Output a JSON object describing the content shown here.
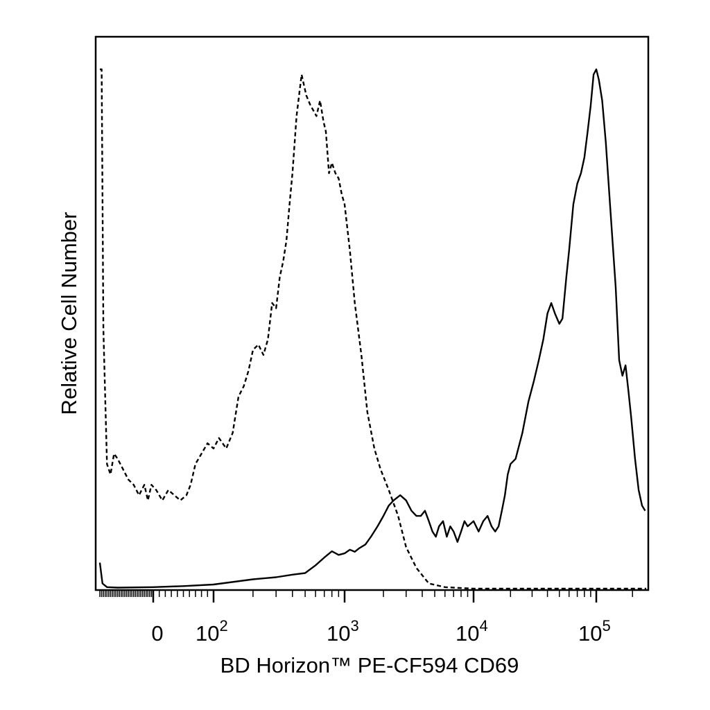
{
  "chart_data": {
    "type": "line",
    "xlabel": "BD Horizon™ PE-CF594 CD69",
    "ylabel": "Relative Cell Number",
    "x_scale": "biexponential",
    "xlim": [
      -300,
      260000
    ],
    "ylim": [
      0,
      100
    ],
    "x_tick_labels": [
      {
        "value": 0,
        "base": "0",
        "exp": ""
      },
      {
        "value": 100,
        "base": "10",
        "exp": "2"
      },
      {
        "value": 1000,
        "base": "10",
        "exp": "3"
      },
      {
        "value": 10000,
        "base": "10",
        "exp": "4"
      },
      {
        "value": 100000,
        "base": "10",
        "exp": "5"
      }
    ],
    "grid": false,
    "legend": "none",
    "series": [
      {
        "style": "dashed",
        "color": "#000000",
        "points": [
          [
            -300,
            100
          ],
          [
            -290,
            100
          ],
          [
            -280,
            50
          ],
          [
            -260,
            24
          ],
          [
            -240,
            22
          ],
          [
            -220,
            26
          ],
          [
            -200,
            25
          ],
          [
            -170,
            23
          ],
          [
            -140,
            21
          ],
          [
            -110,
            20
          ],
          [
            -80,
            18
          ],
          [
            -50,
            20
          ],
          [
            -30,
            17
          ],
          [
            -10,
            20
          ],
          [
            5,
            19
          ],
          [
            15,
            17
          ],
          [
            25,
            19
          ],
          [
            35,
            18
          ],
          [
            45,
            17
          ],
          [
            55,
            18
          ],
          [
            62,
            20
          ],
          [
            70,
            24
          ],
          [
            80,
            26
          ],
          [
            90,
            28
          ],
          [
            100,
            27
          ],
          [
            110,
            29
          ],
          [
            125,
            27
          ],
          [
            140,
            30
          ],
          [
            155,
            37
          ],
          [
            170,
            39
          ],
          [
            185,
            42
          ],
          [
            200,
            46
          ],
          [
            220,
            47
          ],
          [
            240,
            45
          ],
          [
            260,
            48
          ],
          [
            280,
            55
          ],
          [
            300,
            54
          ],
          [
            320,
            60
          ],
          [
            340,
            63
          ],
          [
            360,
            67
          ],
          [
            380,
            74
          ],
          [
            400,
            80
          ],
          [
            430,
            91
          ],
          [
            470,
            99
          ],
          [
            510,
            95
          ],
          [
            550,
            93
          ],
          [
            580,
            92
          ],
          [
            610,
            91
          ],
          [
            650,
            94
          ],
          [
            690,
            90
          ],
          [
            720,
            88
          ],
          [
            760,
            80
          ],
          [
            800,
            82
          ],
          [
            850,
            80
          ],
          [
            900,
            79
          ],
          [
            950,
            76
          ],
          [
            1000,
            74
          ],
          [
            1100,
            65
          ],
          [
            1200,
            55
          ],
          [
            1350,
            45
          ],
          [
            1500,
            34
          ],
          [
            1700,
            27
          ],
          [
            1900,
            23
          ],
          [
            2200,
            19
          ],
          [
            2600,
            14
          ],
          [
            3000,
            8
          ],
          [
            3600,
            4
          ],
          [
            4500,
            1
          ],
          [
            6000,
            0.3
          ],
          [
            10000,
            0
          ],
          [
            260000,
            0
          ]
        ]
      },
      {
        "style": "solid",
        "color": "#000000",
        "points": [
          [
            -300,
            5
          ],
          [
            -285,
            1
          ],
          [
            -260,
            0.3
          ],
          [
            -200,
            0.2
          ],
          [
            0,
            0.3
          ],
          [
            50,
            0.5
          ],
          [
            100,
            0.8
          ],
          [
            200,
            1.8
          ],
          [
            300,
            2.2
          ],
          [
            400,
            2.7
          ],
          [
            500,
            3.0
          ],
          [
            600,
            4.5
          ],
          [
            700,
            6
          ],
          [
            800,
            7.2
          ],
          [
            900,
            6.5
          ],
          [
            1000,
            6.8
          ],
          [
            1100,
            7.5
          ],
          [
            1200,
            7.1
          ],
          [
            1300,
            7.8
          ],
          [
            1450,
            8.5
          ],
          [
            1600,
            10
          ],
          [
            1800,
            12
          ],
          [
            2000,
            14
          ],
          [
            2200,
            16
          ],
          [
            2400,
            17
          ],
          [
            2700,
            18
          ],
          [
            3000,
            17
          ],
          [
            3300,
            15
          ],
          [
            3600,
            14
          ],
          [
            3900,
            14
          ],
          [
            4200,
            15
          ],
          [
            4500,
            13
          ],
          [
            4800,
            11
          ],
          [
            5100,
            10
          ],
          [
            5400,
            12
          ],
          [
            5800,
            13
          ],
          [
            6200,
            10
          ],
          [
            6600,
            12
          ],
          [
            7000,
            11
          ],
          [
            7500,
            9
          ],
          [
            8000,
            11
          ],
          [
            8500,
            13
          ],
          [
            9000,
            12
          ],
          [
            10000,
            13
          ],
          [
            11000,
            11
          ],
          [
            12000,
            13
          ],
          [
            13000,
            14
          ],
          [
            14000,
            12
          ],
          [
            15000,
            11
          ],
          [
            16000,
            12
          ],
          [
            17000,
            15
          ],
          [
            18000,
            18
          ],
          [
            19000,
            22
          ],
          [
            20000,
            24
          ],
          [
            22000,
            25
          ],
          [
            25000,
            30
          ],
          [
            28000,
            36
          ],
          [
            31000,
            40
          ],
          [
            34000,
            44
          ],
          [
            37000,
            48
          ],
          [
            40000,
            53
          ],
          [
            43000,
            55
          ],
          [
            46000,
            53
          ],
          [
            50000,
            51
          ],
          [
            53000,
            52
          ],
          [
            57000,
            60
          ],
          [
            60000,
            65
          ],
          [
            65000,
            74
          ],
          [
            70000,
            78
          ],
          [
            75000,
            80
          ],
          [
            80000,
            83
          ],
          [
            85000,
            88
          ],
          [
            90000,
            93
          ],
          [
            95000,
            99
          ],
          [
            100000,
            100
          ],
          [
            105000,
            98
          ],
          [
            112000,
            94
          ],
          [
            120000,
            86
          ],
          [
            130000,
            74
          ],
          [
            145000,
            58
          ],
          [
            155000,
            44
          ],
          [
            165000,
            41
          ],
          [
            175000,
            43
          ],
          [
            185000,
            38
          ],
          [
            195000,
            33
          ],
          [
            210000,
            25
          ],
          [
            225000,
            19
          ],
          [
            240000,
            16
          ],
          [
            255000,
            15
          ]
        ]
      }
    ]
  }
}
